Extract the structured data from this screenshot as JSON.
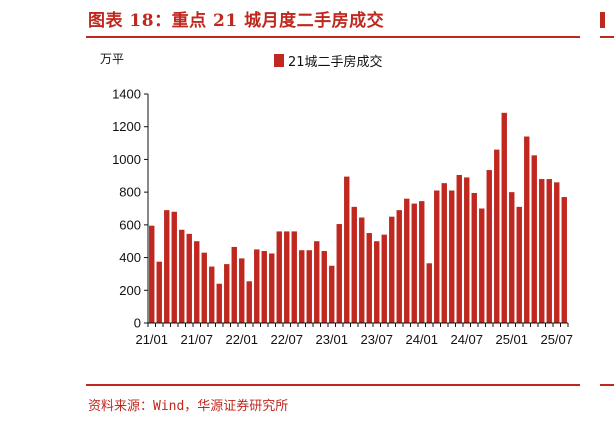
{
  "header": {
    "title": "图表 18：重点 21 城月度二手房成交"
  },
  "footer": {
    "source": "资料来源：Wind，华源证券研究所"
  },
  "colors": {
    "accent": "#c0281f",
    "bar": "#c0281f"
  },
  "chart_data": {
    "type": "bar",
    "unit_label": "万平",
    "legend_position": "top-center",
    "grid": false,
    "series": [
      {
        "name": "21城二手房成交",
        "values": [
          595,
          375,
          690,
          680,
          570,
          545,
          500,
          430,
          345,
          240,
          360,
          465,
          395,
          255,
          450,
          440,
          425,
          560,
          560,
          560,
          445,
          445,
          500,
          440,
          350,
          605,
          895,
          710,
          645,
          550,
          500,
          540,
          650,
          690,
          760,
          730,
          745,
          365,
          810,
          855,
          810,
          905,
          890,
          795,
          700,
          935,
          1060,
          1285,
          800,
          710,
          1140,
          1025,
          880,
          880,
          860,
          770
        ]
      }
    ],
    "xtick_labels": [
      "21/01",
      "21/07",
      "22/01",
      "22/07",
      "23/01",
      "23/07",
      "24/01",
      "24/07",
      "25/01",
      "25/07"
    ],
    "xtick_positions": [
      0,
      6,
      12,
      18,
      24,
      30,
      36,
      42,
      48,
      54
    ],
    "ylim": [
      0,
      1400
    ],
    "yticks": [
      0,
      200,
      400,
      600,
      800,
      1000,
      1200,
      1400
    ]
  }
}
